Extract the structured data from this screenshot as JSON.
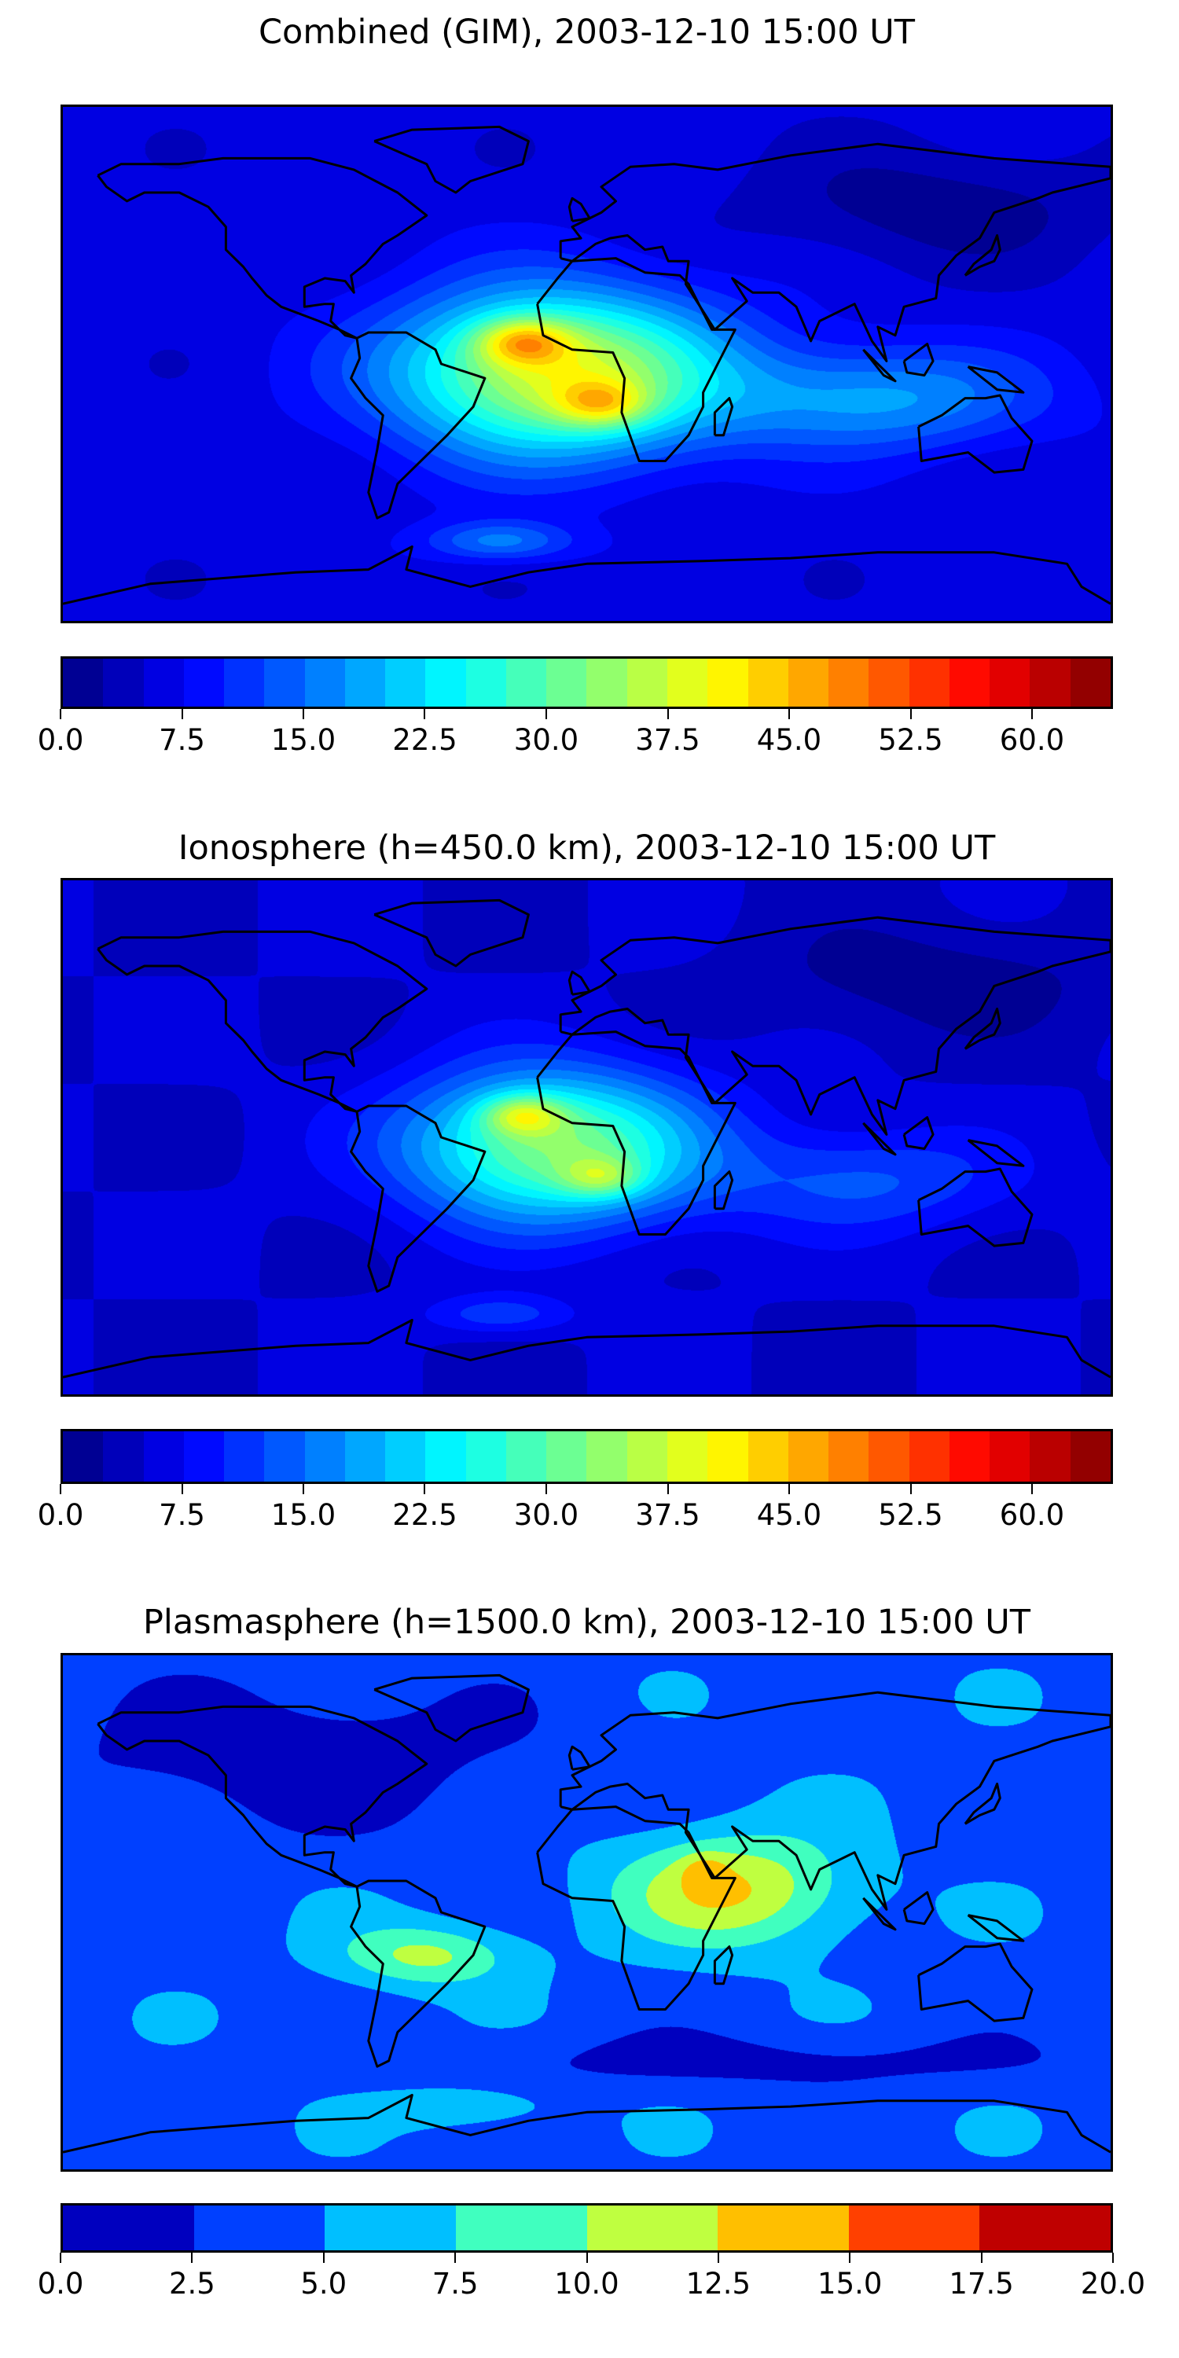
{
  "chart_data": [
    {
      "type": "heatmap",
      "title": "Combined (GIM), 2003-12-10 15:00 UT",
      "projection": "equirectangular world map with coastlines",
      "colormap": "jet",
      "colorbar": {
        "min": 0,
        "max": 65,
        "step": 2.5,
        "tick_labels": [
          "0.0",
          "7.5",
          "15.0",
          "22.5",
          "30.0",
          "37.5",
          "45.0",
          "52.5",
          "60.0"
        ],
        "ticks": [
          0,
          7.5,
          15,
          22.5,
          30,
          37.5,
          45,
          52.5,
          60
        ]
      },
      "field": {
        "base": 6,
        "components": [
          {
            "lon": -10,
            "lat": -3,
            "amp": 33,
            "sx": 55,
            "sy": 28
          },
          {
            "lon": -22,
            "lat": 8,
            "amp": 16,
            "sx": 16,
            "sy": 8
          },
          {
            "lon": 5,
            "lat": -14,
            "amp": 13,
            "sx": 16,
            "sy": 8
          },
          {
            "lon": 100,
            "lat": -12,
            "amp": 12,
            "sx": 55,
            "sy": 18
          },
          {
            "lon": -30,
            "lat": -62,
            "amp": 10,
            "sx": 25,
            "sy": 7
          },
          {
            "lon": 120,
            "lat": 55,
            "amp": -5,
            "sx": 60,
            "sy": 20
          }
        ]
      }
    },
    {
      "type": "heatmap",
      "title": "Ionosphere  (h=450.0 km), 2003-12-10 15:00 UT",
      "projection": "equirectangular world map with coastlines",
      "colormap": "jet",
      "colorbar": {
        "min": 0,
        "max": 65,
        "step": 2.5,
        "tick_labels": [
          "0.0",
          "7.5",
          "15.0",
          "22.5",
          "30.0",
          "37.5",
          "45.0",
          "52.5",
          "60.0"
        ],
        "ticks": [
          0,
          7.5,
          15,
          22.5,
          30,
          37.5,
          45,
          52.5,
          60
        ]
      },
      "field": {
        "base": 5,
        "components": [
          {
            "lon": -12,
            "lat": -3,
            "amp": 28,
            "sx": 50,
            "sy": 26
          },
          {
            "lon": -22,
            "lat": 8,
            "amp": 14,
            "sx": 14,
            "sy": 7
          },
          {
            "lon": 5,
            "lat": -14,
            "amp": 11,
            "sx": 14,
            "sy": 7
          },
          {
            "lon": 95,
            "lat": -15,
            "amp": 8,
            "sx": 50,
            "sy": 18
          },
          {
            "lon": -30,
            "lat": -62,
            "amp": 7,
            "sx": 25,
            "sy": 7
          },
          {
            "lon": 120,
            "lat": 55,
            "amp": -4,
            "sx": 60,
            "sy": 20
          }
        ]
      }
    },
    {
      "type": "heatmap",
      "title": "Plasmasphere (h=1500.0 km), 2003-12-10 15:00 UT",
      "projection": "equirectangular world map with coastlines",
      "colormap": "jet",
      "colorbar": {
        "min": 0,
        "max": 20,
        "step": 2.5,
        "tick_labels": [
          "0.0",
          "2.5",
          "5.0",
          "7.5",
          "10.0",
          "12.5",
          "15.0",
          "17.5",
          "20.0"
        ],
        "ticks": [
          0,
          2.5,
          5,
          7.5,
          10,
          12.5,
          15,
          17.5,
          20
        ]
      },
      "field": {
        "base": 4.2,
        "components": [
          {
            "lon": 50,
            "lat": 8,
            "amp": 8.5,
            "sx": 40,
            "sy": 20
          },
          {
            "lon": 40,
            "lat": 15,
            "amp": 3,
            "sx": 8,
            "sy": 6
          },
          {
            "lon": -55,
            "lat": -15,
            "amp": 6.5,
            "sx": 30,
            "sy": 11
          },
          {
            "lon": -100,
            "lat": 55,
            "amp": -3.5,
            "sx": 80,
            "sy": 25
          },
          {
            "lon": 60,
            "lat": -52,
            "amp": -2.5,
            "sx": 120,
            "sy": 10
          },
          {
            "lon": -40,
            "lat": -68,
            "amp": 3,
            "sx": 30,
            "sy": 8
          }
        ]
      }
    }
  ]
}
